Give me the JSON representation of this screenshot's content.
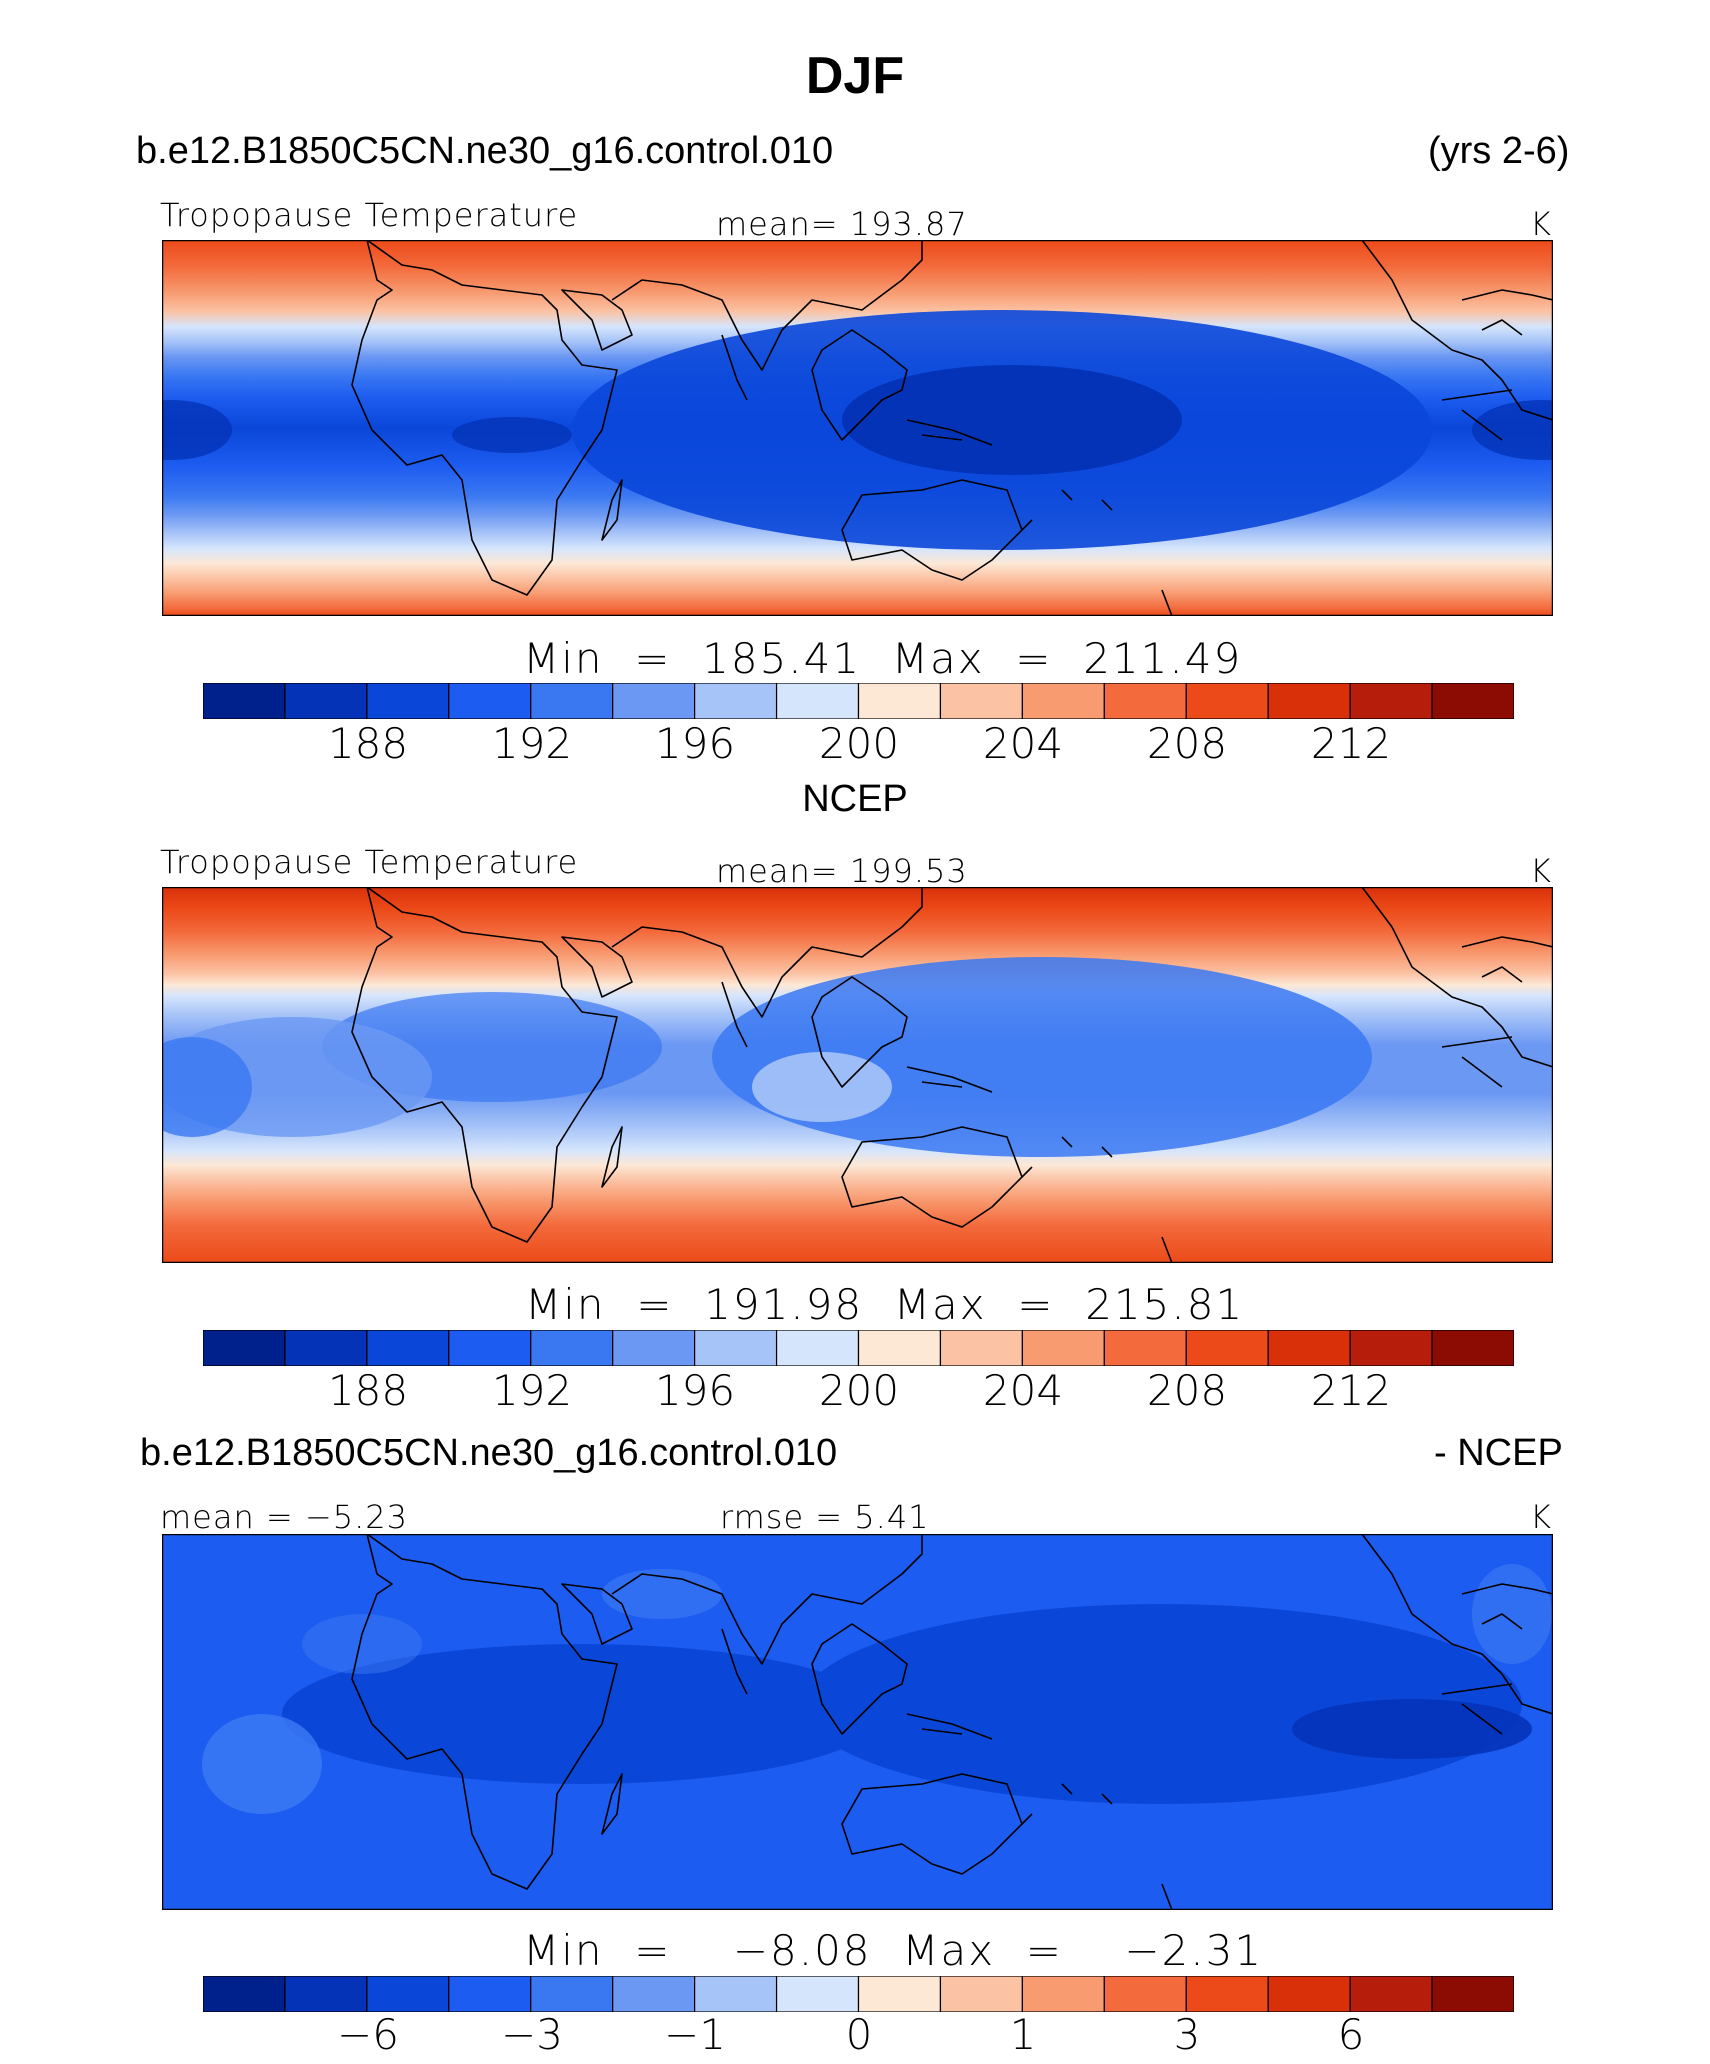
{
  "figure": {
    "title": "DJF",
    "top_header": {
      "left": "b.e12.B1850C5CN.ne30_g16.control.010",
      "right": "(yrs 2-6)"
    },
    "middle_header": {
      "center": "NCEP"
    },
    "bottom_header": {
      "left": "b.e12.B1850C5CN.ne30_g16.control.010",
      "right": "- NCEP"
    }
  },
  "panels": [
    {
      "id": "model",
      "left_label": "Tropopause Temperature",
      "center_label": "mean=  193.87",
      "units": "K",
      "min_max": "Min  =  185.41  Max  =  211.49",
      "colorbar_ticks": [
        "188",
        "192",
        "196",
        "200",
        "204",
        "208",
        "212"
      ]
    },
    {
      "id": "obs",
      "left_label": "Tropopause Temperature",
      "center_label": "mean=  199.53",
      "units": "K",
      "min_max": "Min  =  191.98  Max  =  215.81",
      "colorbar_ticks": [
        "188",
        "192",
        "196",
        "200",
        "204",
        "208",
        "212"
      ]
    },
    {
      "id": "diff",
      "left_label": "mean =   −5.23",
      "center_label": "rmse =     5.41",
      "units": "K",
      "min_max": "Min  =    −8.08  Max  =    −2.31",
      "colorbar_ticks": [
        "−6",
        "−3",
        "−1",
        "0",
        "1",
        "3",
        "6"
      ]
    }
  ],
  "colorbar_colors": [
    "#00208c",
    "#0433b8",
    "#0a47d9",
    "#1d5cf0",
    "#3a78f2",
    "#6b98f3",
    "#a7c4f8",
    "#d5e5fc",
    "#fde8d6",
    "#fbc3a4",
    "#f89b71",
    "#f36a3c",
    "#ec4a18",
    "#d9300a",
    "#b61d0a",
    "#8c0c04"
  ]
}
